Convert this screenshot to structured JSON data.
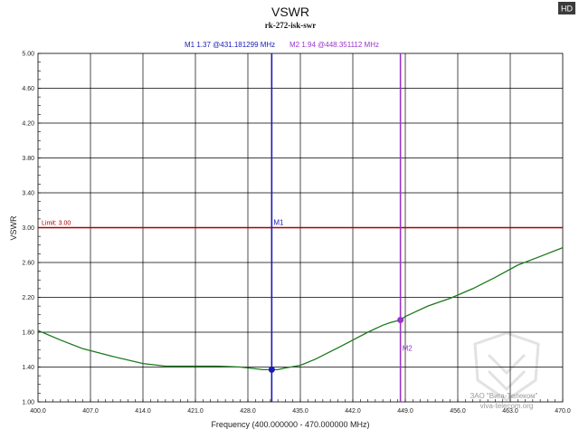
{
  "badge": "HD",
  "watermark": {
    "line1": "ЗАО \"Вига-Телеком\"",
    "line2": "viva-telecom.org"
  },
  "chart_data": {
    "type": "line",
    "title": "VSWR",
    "subtitle": "rk-272-isk-swr",
    "xlabel": "Frequency (400.000000 - 470.000000 MHz)",
    "ylabel": "VSWR",
    "xlim": [
      400,
      470
    ],
    "ylim": [
      1.0,
      5.0
    ],
    "grid": true,
    "xticks": [
      400,
      407,
      414,
      421,
      428,
      435,
      442,
      449,
      456,
      463,
      470
    ],
    "xtick_labels": [
      "400.0",
      "407.0",
      "414.0",
      "421.0",
      "428.0",
      "435.0",
      "442.0",
      "449.0",
      "456.0",
      "463.0",
      "470.0"
    ],
    "yticks": [
      1.0,
      1.4,
      1.8,
      2.2,
      2.6,
      3.0,
      3.4,
      3.8,
      4.2,
      4.6,
      5.0
    ],
    "ytick_labels": [
      "1.00",
      "1.40",
      "1.80",
      "2.20",
      "2.60",
      "3.00",
      "3.40",
      "3.80",
      "4.20",
      "4.60",
      "5.00"
    ],
    "limit": {
      "label": "Limit: 3.00",
      "value": 3.0,
      "color": "#aa0000"
    },
    "series": [
      {
        "color": "#1a7a1a",
        "x": [
          400,
          403,
          406,
          410,
          414,
          417,
          420,
          424,
          427,
          429,
          430,
          431.18,
          432,
          433,
          435,
          437,
          440,
          442,
          444,
          446,
          447,
          448.35,
          449,
          450,
          452,
          455,
          458,
          461,
          464,
          467,
          470
        ],
        "y": [
          1.82,
          1.71,
          1.61,
          1.52,
          1.44,
          1.41,
          1.41,
          1.41,
          1.4,
          1.38,
          1.37,
          1.37,
          1.37,
          1.39,
          1.42,
          1.49,
          1.62,
          1.71,
          1.8,
          1.88,
          1.91,
          1.94,
          1.98,
          2.02,
          2.1,
          2.19,
          2.3,
          2.43,
          2.57,
          2.67,
          2.77
        ]
      }
    ],
    "markers": [
      {
        "id": "M1",
        "label": "M1",
        "value": 1.37,
        "freq": 431.181299,
        "readout": "M1   1.37 @431.181299 MHz",
        "color": "#1a1ab8"
      },
      {
        "id": "M2",
        "label": "M2",
        "value": 1.94,
        "freq": 448.351112,
        "readout": "M2   1.94 @448.351112 MHz",
        "color": "#9a33cc"
      }
    ]
  }
}
